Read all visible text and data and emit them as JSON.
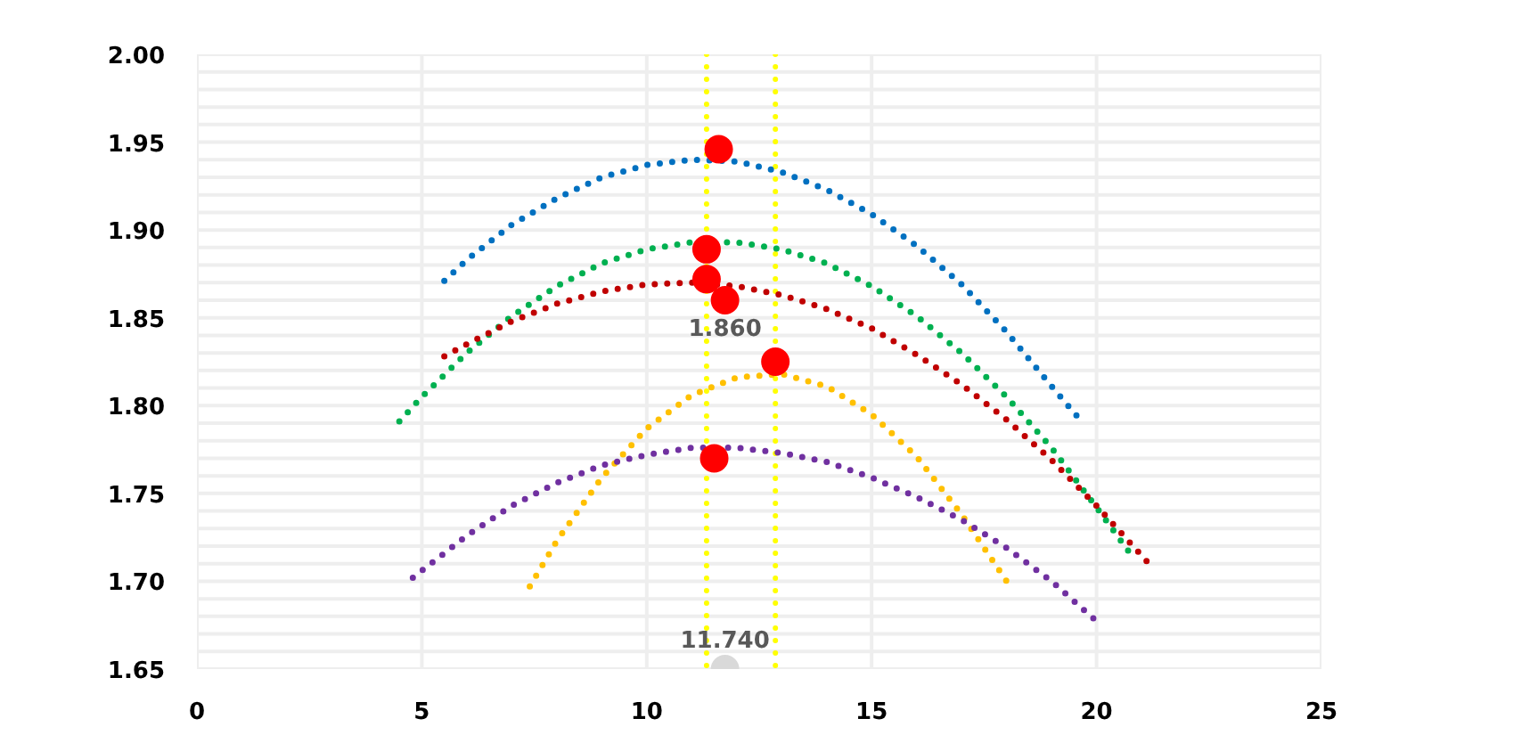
{
  "chart_data": {
    "type": "line",
    "line_style": "dotted",
    "marker": "none",
    "grid": true,
    "xlim": [
      0,
      25
    ],
    "xticks": [
      0,
      5,
      10,
      15,
      20,
      25
    ],
    "ylim": [
      1.65,
      2.0
    ],
    "yticks": [
      1.65,
      {
        "value": 1.7,
        "label": "1.70"
      },
      1.75,
      {
        "value": 1.8,
        "label": "1.80"
      },
      1.85,
      {
        "value": 1.9,
        "label": "1.90"
      },
      1.95,
      {
        "value": 2.0,
        "label": "2.00"
      }
    ],
    "series": [
      {
        "color": "#0070c0",
        "x": [
          5.5,
          6,
          7,
          8,
          9,
          10,
          11,
          12,
          13,
          14,
          15,
          16,
          17,
          18,
          19,
          19.7
        ],
        "values": [
          1.871,
          1.883,
          1.903,
          1.918,
          1.93,
          1.937,
          1.94,
          1.939,
          1.933,
          1.923,
          1.909,
          1.891,
          1.869,
          1.842,
          1.811,
          1.79
        ]
      },
      {
        "color": "#00b050",
        "x": [
          4.5,
          5,
          6,
          7,
          8,
          9,
          10,
          11,
          12,
          13,
          14,
          15,
          16,
          17,
          18,
          19,
          20,
          20.8
        ],
        "values": [
          1.791,
          1.805,
          1.83,
          1.851,
          1.868,
          1.881,
          1.889,
          1.893,
          1.893,
          1.889,
          1.881,
          1.868,
          1.851,
          1.83,
          1.805,
          1.776,
          1.742,
          1.714
        ]
      },
      {
        "color": "#c00000",
        "x": [
          5.5,
          6,
          7,
          8,
          9,
          10,
          11,
          12,
          13,
          14,
          15,
          16,
          17,
          18,
          19,
          20,
          21.2
        ],
        "values": [
          1.828,
          1.835,
          1.848,
          1.858,
          1.865,
          1.869,
          1.87,
          1.868,
          1.863,
          1.855,
          1.844,
          1.829,
          1.812,
          1.792,
          1.769,
          1.743,
          1.709
        ]
      },
      {
        "color": "#ffc000",
        "x": [
          7.4,
          8,
          9,
          10,
          11,
          12,
          13,
          14,
          15,
          16,
          17,
          18
        ],
        "values": [
          1.697,
          1.723,
          1.759,
          1.787,
          1.806,
          1.816,
          1.818,
          1.811,
          1.795,
          1.771,
          1.738,
          1.7
        ]
      },
      {
        "color": "#7030a0",
        "x": [
          4.8,
          6,
          7,
          8,
          9,
          10,
          11,
          12,
          13,
          14,
          15,
          16,
          17,
          18,
          19,
          20.1
        ],
        "values": [
          1.702,
          1.726,
          1.743,
          1.756,
          1.766,
          1.772,
          1.776,
          1.776,
          1.773,
          1.768,
          1.759,
          1.748,
          1.735,
          1.719,
          1.7,
          1.675
        ]
      },
      {
        "type": "scatter",
        "marker": "circle",
        "color": "#ff0000",
        "x": [
          11.6,
          11.33,
          11.33,
          12.86,
          11.5,
          11.74
        ],
        "values": [
          1.946,
          1.889,
          1.872,
          1.825,
          1.77,
          1.86
        ]
      },
      {
        "type": "scatter",
        "marker": "circle",
        "color": "#d9d9d9",
        "x": [
          11.74
        ],
        "values": [
          1.65
        ]
      }
    ],
    "ref_lines": [
      {
        "axis": "x",
        "value": 11.33,
        "color": "#ffff00",
        "line_style": "dotted"
      },
      {
        "axis": "x",
        "value": 12.86,
        "color": "#ffff00",
        "line_style": "dotted"
      }
    ],
    "annotations": [
      {
        "text": "1.860",
        "x": 11.74,
        "y": 1.86
      },
      {
        "text": "11.740",
        "x": 11.74,
        "y": 1.65
      }
    ]
  }
}
